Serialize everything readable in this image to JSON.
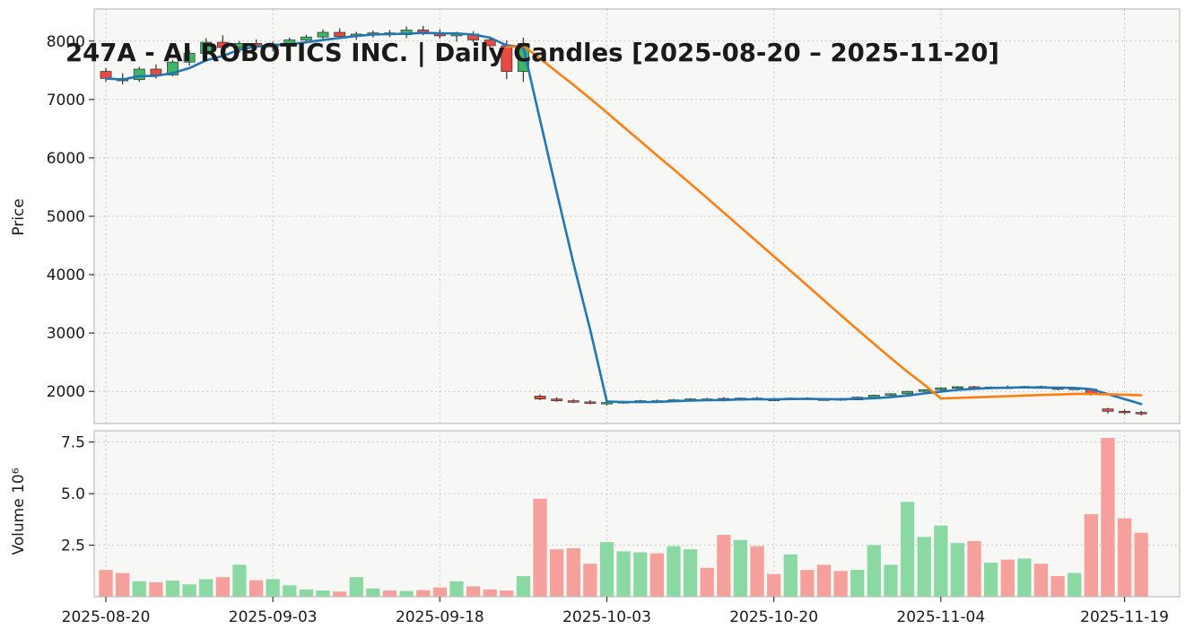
{
  "title": "247A - AI ROBOTICS INC. | Daily Candles [2025-08-20 – 2025-11-20]",
  "colors": {
    "up": "#3fb567",
    "down": "#e84a42",
    "volume_up": "#8bd9a2",
    "volume_down": "#f5a09b",
    "wick": "#3d3d3d",
    "candle_edge": "#2f2f2f",
    "ma_short": "#1f77b4",
    "ma_long": "#ff7f0e",
    "grid": "#c9c9c9",
    "panel_bg": "#f7f7f5",
    "panel_border": "#bfbfbf",
    "text": "#1a1a1a",
    "figure_bg": "#ffffff"
  },
  "chart_data": {
    "type": "candlestick",
    "title": "247A - AI ROBOTICS INC. | Daily Candles [2025-08-20 – 2025-11-20]",
    "xlabel": "",
    "ylabel": "Price",
    "ylabel_volume": "Volume 10⁶",
    "volume_unit": "10⁶",
    "grid": true,
    "legend": false,
    "price_ticks": [
      2000,
      3000,
      4000,
      5000,
      6000,
      7000,
      8000
    ],
    "volume_ticks": [
      2.5,
      5.0,
      7.5
    ],
    "price_ylim": [
      1450,
      8550
    ],
    "volume_ylim": [
      0,
      8.05
    ],
    "x_tick_indices": [
      0,
      10,
      20,
      30,
      40,
      50,
      61
    ],
    "x_tick_labels": [
      "2025-08-20",
      "2025-09-03",
      "2025-09-18",
      "2025-10-03",
      "2025-10-20",
      "2025-11-04",
      "2025-11-19"
    ],
    "moving_averages": [
      {
        "name": "MA(5)",
        "color_key": "ma_short",
        "values": [
          7360,
          7340,
          7400,
          7405,
          7452,
          7538,
          7670,
          7744,
          7852,
          7904,
          7936,
          7944,
          7980,
          8018,
          8054,
          8088,
          8112,
          8120,
          8128,
          8140,
          8134,
          8130,
          8112,
          8058,
          7926,
          7900,
          6650,
          5414,
          4194,
          3058,
          1828,
          1819,
          1819,
          1821,
          1832,
          1844,
          1850,
          1852,
          1863,
          1865,
          1863,
          1869,
          1873,
          1868,
          1866,
          1874,
          1884,
          1902,
          1930,
          1965,
          1997,
          2026,
          2044,
          2059,
          2065,
          2070,
          2066,
          2064,
          2060,
          2038,
          1953,
          1869,
          1785
        ]
      },
      {
        "name": "MA(25)",
        "color_key": "ma_long",
        "values": [
          null,
          null,
          null,
          null,
          null,
          null,
          null,
          null,
          null,
          null,
          null,
          null,
          null,
          null,
          null,
          null,
          null,
          null,
          null,
          null,
          null,
          null,
          null,
          null,
          7895,
          7919,
          7701,
          7474,
          7250,
          7016,
          6777,
          6531,
          6289,
          6044,
          5802,
          5559,
          5312,
          5063,
          4813,
          4564,
          4314,
          4064,
          3814,
          3561,
          3309,
          3062,
          2814,
          2572,
          2335,
          2117,
          1881,
          1890,
          1898,
          1908,
          1919,
          1930,
          1939,
          1947,
          1956,
          1960,
          1951,
          1943,
          1934
        ]
      }
    ],
    "candles": [
      {
        "date": "2025-08-20",
        "open": 7480,
        "high": 7540,
        "low": 7300,
        "close": 7360,
        "volume": 1.3
      },
      {
        "date": "2025-08-21",
        "open": 7360,
        "high": 7450,
        "low": 7260,
        "close": 7320,
        "volume": 1.15
      },
      {
        "date": "2025-08-22",
        "open": 7340,
        "high": 7560,
        "low": 7300,
        "close": 7520,
        "volume": 0.75
      },
      {
        "date": "2025-08-25",
        "open": 7520,
        "high": 7600,
        "low": 7360,
        "close": 7420,
        "volume": 0.7
      },
      {
        "date": "2025-08-26",
        "open": 7420,
        "high": 7680,
        "low": 7400,
        "close": 7640,
        "volume": 0.78
      },
      {
        "date": "2025-08-27",
        "open": 7640,
        "high": 7840,
        "low": 7580,
        "close": 7790,
        "volume": 0.6
      },
      {
        "date": "2025-08-28",
        "open": 7790,
        "high": 8050,
        "low": 7700,
        "close": 7980,
        "volume": 0.85
      },
      {
        "date": "2025-08-29",
        "open": 7980,
        "high": 8100,
        "low": 7830,
        "close": 7890,
        "volume": 0.95
      },
      {
        "date": "2025-09-01",
        "open": 7890,
        "high": 8000,
        "low": 7800,
        "close": 7960,
        "volume": 1.55
      },
      {
        "date": "2025-09-02",
        "open": 7960,
        "high": 8030,
        "low": 7850,
        "close": 7900,
        "volume": 0.8
      },
      {
        "date": "2025-09-03",
        "open": 7900,
        "high": 7990,
        "low": 7820,
        "close": 7950,
        "volume": 0.85
      },
      {
        "date": "2025-09-04",
        "open": 7950,
        "high": 8060,
        "low": 7900,
        "close": 8020,
        "volume": 0.55
      },
      {
        "date": "2025-09-05",
        "open": 8020,
        "high": 8110,
        "low": 7960,
        "close": 8070,
        "volume": 0.35
      },
      {
        "date": "2025-09-08",
        "open": 8070,
        "high": 8200,
        "low": 8010,
        "close": 8150,
        "volume": 0.3
      },
      {
        "date": "2025-09-09",
        "open": 8150,
        "high": 8220,
        "low": 8040,
        "close": 8080,
        "volume": 0.25
      },
      {
        "date": "2025-09-10",
        "open": 8080,
        "high": 8160,
        "low": 8020,
        "close": 8120,
        "volume": 0.95
      },
      {
        "date": "2025-09-11",
        "open": 8120,
        "high": 8180,
        "low": 8060,
        "close": 8140,
        "volume": 0.4
      },
      {
        "date": "2025-09-12",
        "open": 8140,
        "high": 8190,
        "low": 8070,
        "close": 8110,
        "volume": 0.3
      },
      {
        "date": "2025-09-16",
        "open": 8110,
        "high": 8250,
        "low": 8050,
        "close": 8190,
        "volume": 0.28
      },
      {
        "date": "2025-09-17",
        "open": 8190,
        "high": 8260,
        "low": 8100,
        "close": 8140,
        "volume": 0.32
      },
      {
        "date": "2025-09-18",
        "open": 8140,
        "high": 8200,
        "low": 8040,
        "close": 8090,
        "volume": 0.45
      },
      {
        "date": "2025-09-19",
        "open": 8090,
        "high": 8160,
        "low": 7990,
        "close": 8120,
        "volume": 0.75
      },
      {
        "date": "2025-09-22",
        "open": 8120,
        "high": 8170,
        "low": 7980,
        "close": 8020,
        "volume": 0.5
      },
      {
        "date": "2025-09-24",
        "open": 8020,
        "high": 8080,
        "low": 7850,
        "close": 7920,
        "volume": 0.35
      },
      {
        "date": "2025-09-25",
        "open": 7920,
        "high": 8010,
        "low": 7350,
        "close": 7480,
        "volume": 0.3
      },
      {
        "date": "2025-09-26",
        "open": 7480,
        "high": 8060,
        "low": 7300,
        "close": 7960,
        "volume": 1.0
      },
      {
        "date": "2025-09-29",
        "open": 1920,
        "high": 1950,
        "low": 1850,
        "close": 1870,
        "volume": 4.75
      },
      {
        "date": "2025-09-30",
        "open": 1870,
        "high": 1900,
        "low": 1820,
        "close": 1840,
        "volume": 2.3
      },
      {
        "date": "2025-10-01",
        "open": 1840,
        "high": 1870,
        "low": 1800,
        "close": 1820,
        "volume": 2.35
      },
      {
        "date": "2025-10-02",
        "open": 1820,
        "high": 1850,
        "low": 1780,
        "close": 1800,
        "volume": 1.6
      },
      {
        "date": "2025-10-03",
        "open": 1790,
        "high": 1830,
        "low": 1760,
        "close": 1810,
        "volume": 2.65
      },
      {
        "date": "2025-10-06",
        "open": 1810,
        "high": 1840,
        "low": 1790,
        "close": 1825,
        "volume": 2.2
      },
      {
        "date": "2025-10-07",
        "open": 1825,
        "high": 1855,
        "low": 1800,
        "close": 1840,
        "volume": 2.15
      },
      {
        "date": "2025-10-08",
        "open": 1840,
        "high": 1860,
        "low": 1810,
        "close": 1830,
        "volume": 2.1
      },
      {
        "date": "2025-10-09",
        "open": 1830,
        "high": 1870,
        "low": 1820,
        "close": 1855,
        "volume": 2.45
      },
      {
        "date": "2025-10-10",
        "open": 1855,
        "high": 1885,
        "low": 1835,
        "close": 1870,
        "volume": 2.3
      },
      {
        "date": "2025-10-14",
        "open": 1870,
        "high": 1890,
        "low": 1840,
        "close": 1855,
        "volume": 1.4
      },
      {
        "date": "2025-10-15",
        "open": 1880,
        "high": 1900,
        "low": 1830,
        "close": 1850,
        "volume": 3.0
      },
      {
        "date": "2025-10-16",
        "open": 1850,
        "high": 1895,
        "low": 1840,
        "close": 1885,
        "volume": 2.75
      },
      {
        "date": "2025-10-17",
        "open": 1885,
        "high": 1905,
        "low": 1850,
        "close": 1865,
        "volume": 2.45
      },
      {
        "date": "2025-10-20",
        "open": 1865,
        "high": 1890,
        "low": 1845,
        "close": 1860,
        "volume": 1.1
      },
      {
        "date": "2025-10-21",
        "open": 1860,
        "high": 1895,
        "low": 1850,
        "close": 1885,
        "volume": 2.05
      },
      {
        "date": "2025-10-22",
        "open": 1885,
        "high": 1900,
        "low": 1855,
        "close": 1870,
        "volume": 1.3
      },
      {
        "date": "2025-10-23",
        "open": 1870,
        "high": 1890,
        "low": 1845,
        "close": 1860,
        "volume": 1.55
      },
      {
        "date": "2025-10-24",
        "open": 1875,
        "high": 1890,
        "low": 1840,
        "close": 1855,
        "volume": 1.25
      },
      {
        "date": "2025-10-27",
        "open": 1855,
        "high": 1910,
        "low": 1850,
        "close": 1900,
        "volume": 1.3
      },
      {
        "date": "2025-10-28",
        "open": 1900,
        "high": 1945,
        "low": 1890,
        "close": 1935,
        "volume": 2.5
      },
      {
        "date": "2025-10-29",
        "open": 1935,
        "high": 1970,
        "low": 1920,
        "close": 1960,
        "volume": 1.55
      },
      {
        "date": "2025-10-30",
        "open": 1960,
        "high": 2010,
        "low": 1950,
        "close": 2000,
        "volume": 4.6
      },
      {
        "date": "2025-10-31",
        "open": 2000,
        "high": 2040,
        "low": 1985,
        "close": 2030,
        "volume": 2.9
      },
      {
        "date": "2025-11-04",
        "open": 2030,
        "high": 2070,
        "low": 2010,
        "close": 2060,
        "volume": 3.45
      },
      {
        "date": "2025-11-05",
        "open": 2060,
        "high": 2090,
        "low": 2040,
        "close": 2080,
        "volume": 2.6
      },
      {
        "date": "2025-11-06",
        "open": 2080,
        "high": 2095,
        "low": 2035,
        "close": 2050,
        "volume": 2.7
      },
      {
        "date": "2025-11-07",
        "open": 2050,
        "high": 2085,
        "low": 2040,
        "close": 2075,
        "volume": 1.65
      },
      {
        "date": "2025-11-10",
        "open": 2075,
        "high": 2100,
        "low": 2040,
        "close": 2060,
        "volume": 1.8
      },
      {
        "date": "2025-11-11",
        "open": 2060,
        "high": 2095,
        "low": 2050,
        "close": 2085,
        "volume": 1.85
      },
      {
        "date": "2025-11-12",
        "open": 2085,
        "high": 2100,
        "low": 2045,
        "close": 2060,
        "volume": 1.6
      },
      {
        "date": "2025-11-13",
        "open": 2060,
        "high": 2075,
        "low": 2020,
        "close": 2040,
        "volume": 1.0
      },
      {
        "date": "2025-11-14",
        "open": 2040,
        "high": 2070,
        "low": 2025,
        "close": 2055,
        "volume": 1.15
      },
      {
        "date": "2025-11-17",
        "open": 2040,
        "high": 2055,
        "low": 1930,
        "close": 1950,
        "volume": 4.0
      },
      {
        "date": "2025-11-18",
        "open": 1700,
        "high": 1720,
        "low": 1620,
        "close": 1660,
        "volume": 7.7
      },
      {
        "date": "2025-11-19",
        "open": 1660,
        "high": 1690,
        "low": 1610,
        "close": 1640,
        "volume": 3.8
      },
      {
        "date": "2025-11-20",
        "open": 1640,
        "high": 1665,
        "low": 1590,
        "close": 1620,
        "volume": 3.1
      }
    ]
  }
}
